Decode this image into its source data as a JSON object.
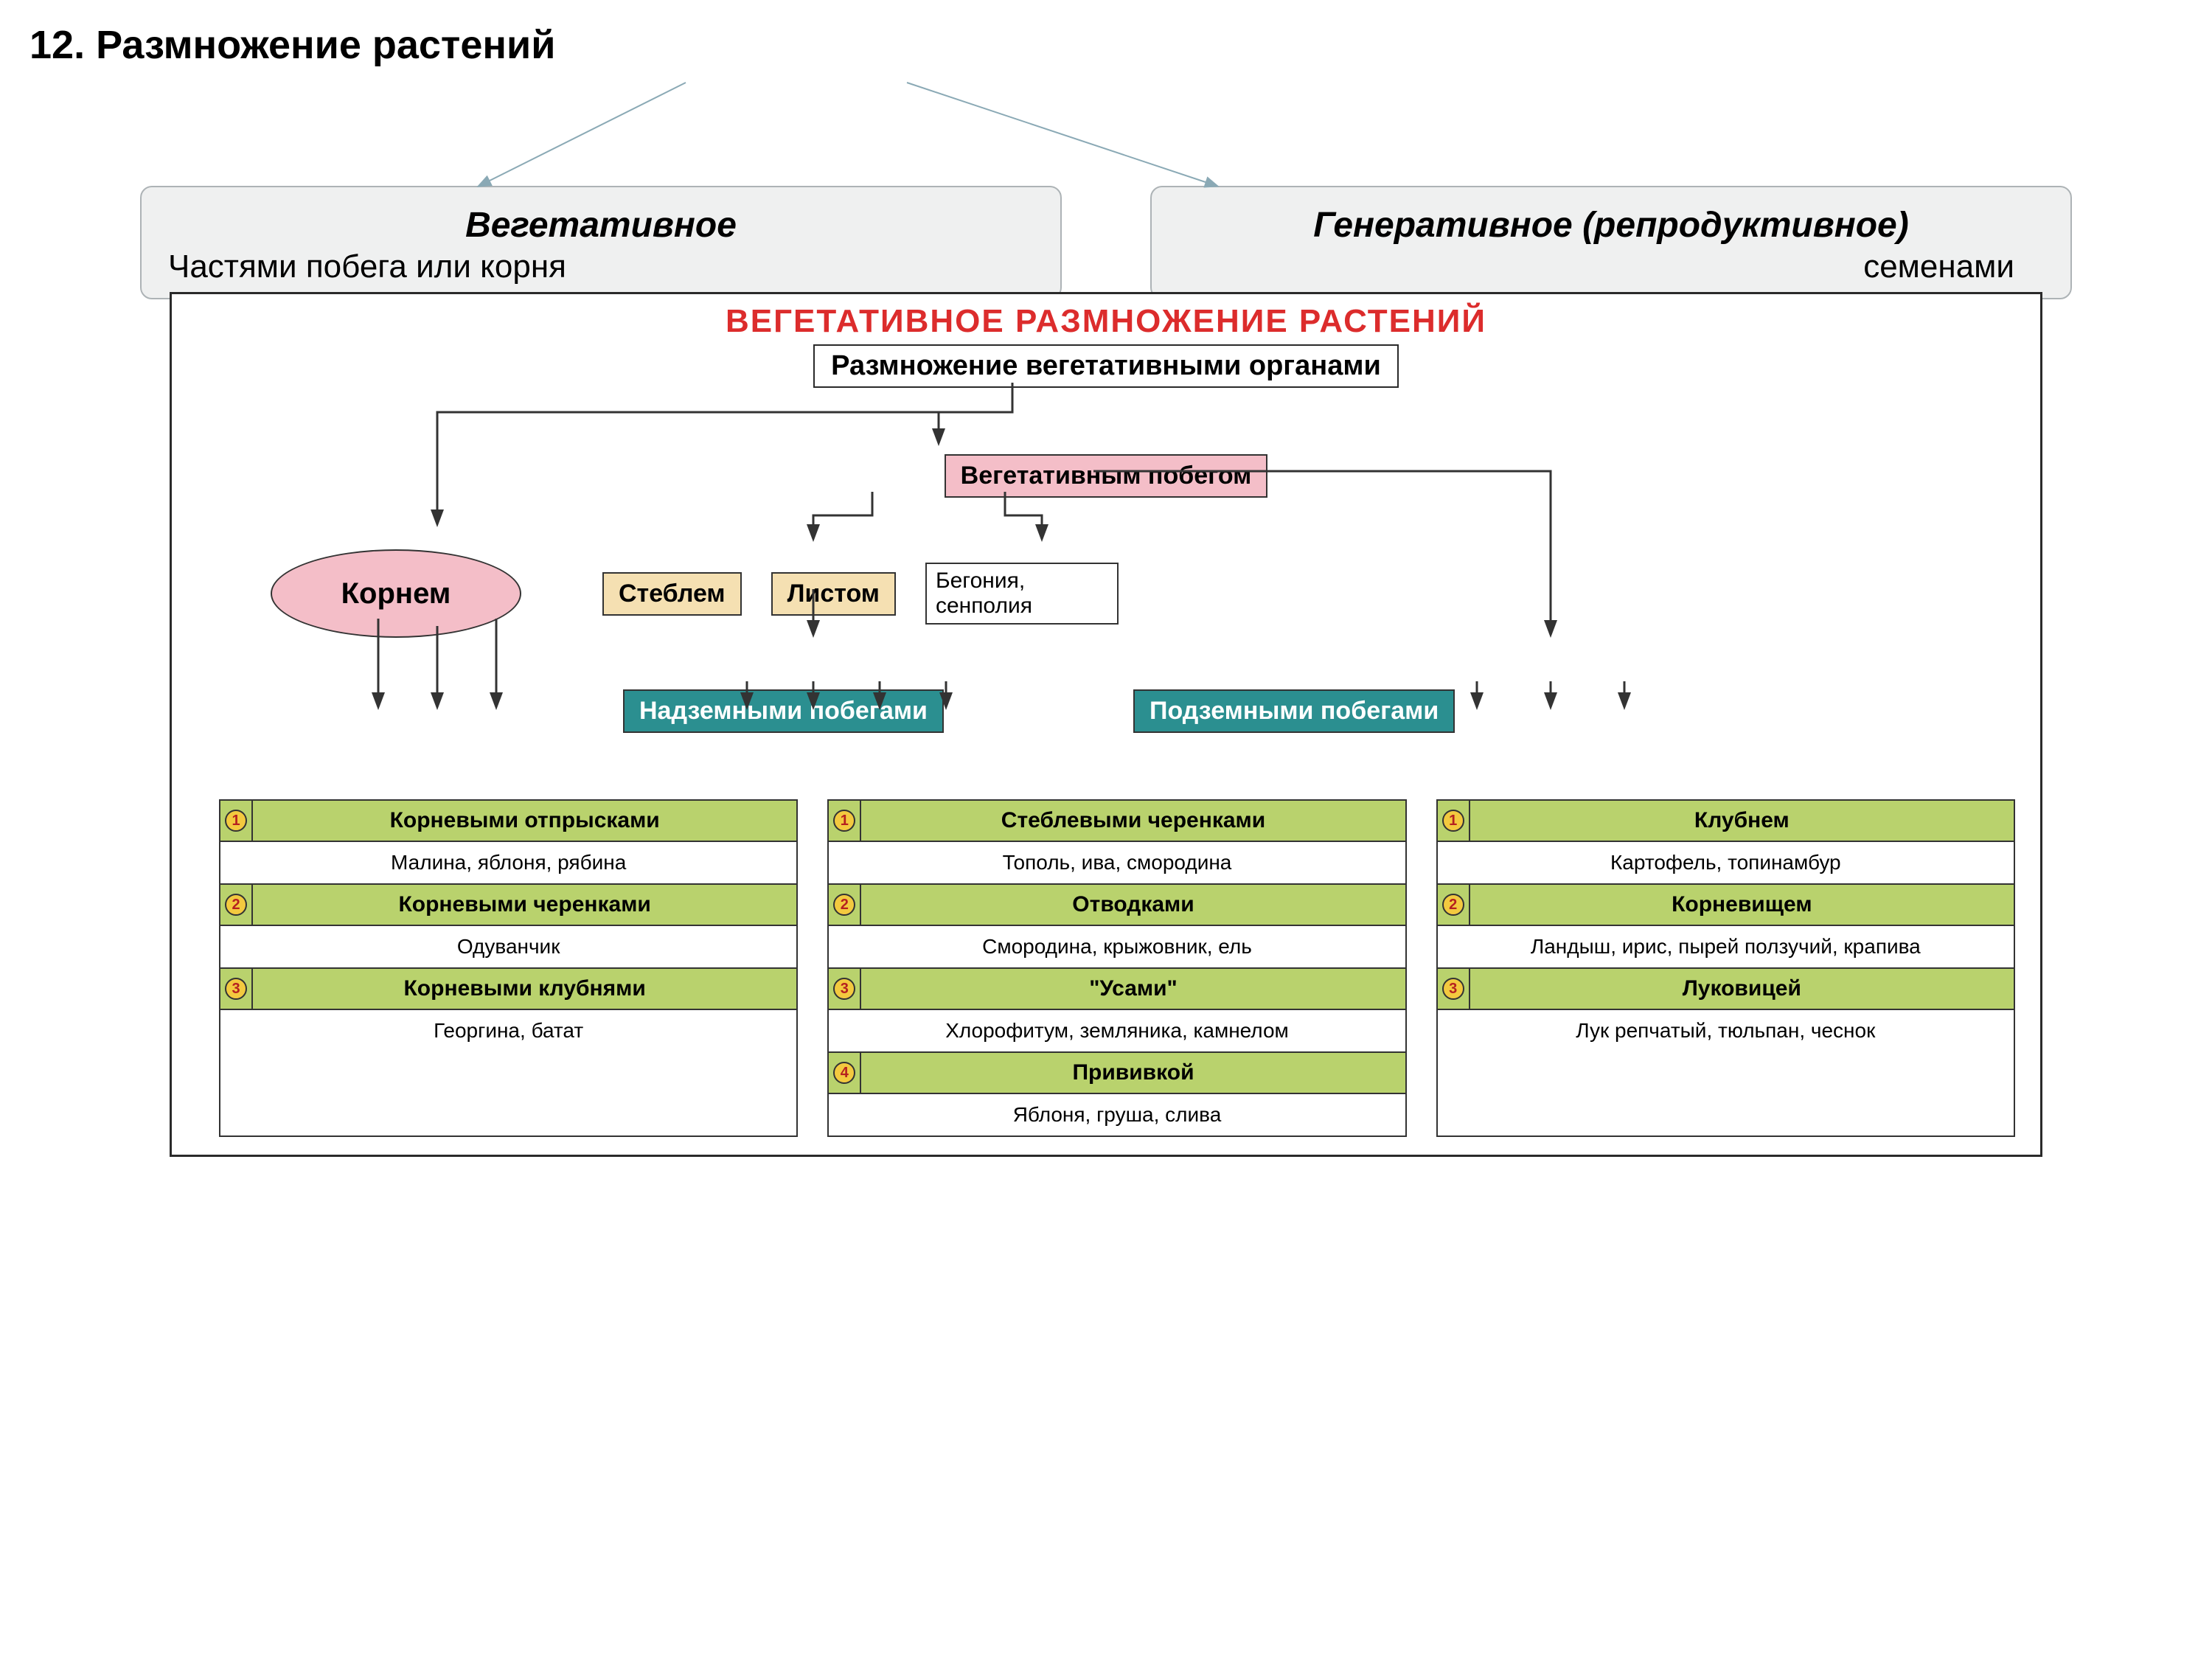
{
  "page_title": "12. Размножение растений",
  "top_boxes": {
    "left": {
      "title": "Вегетативное",
      "sub": "Частями побега или корня"
    },
    "right": {
      "title": "Генеративное (репродуктивное)",
      "sub": "семенами"
    }
  },
  "chart": {
    "title": "ВЕГЕТАТИВНОЕ РАЗМНОЖЕНИЕ РАСТЕНИЙ",
    "subtitle": "Размножение вегетативными органами",
    "nodes": {
      "root": "Корнем",
      "shoot": "Вегетативным побегом",
      "stem": "Стеблем",
      "leaf": "Листом",
      "leaf_note": "Бегония, сенполия",
      "above": "Надземными побегами",
      "below": "Подземными побегами"
    },
    "tables": {
      "root_col": [
        {
          "n": "1",
          "method": "Корневыми отпрысками",
          "ex": "Малина, яблоня, рябина"
        },
        {
          "n": "2",
          "method": "Корневыми черенками",
          "ex": "Одуванчик"
        },
        {
          "n": "3",
          "method": "Корневыми клубнями",
          "ex": "Георгина, батат"
        }
      ],
      "above_col": [
        {
          "n": "1",
          "method": "Стеблевыми черенками",
          "ex": "Тополь, ива, смородина"
        },
        {
          "n": "2",
          "method": "Отводками",
          "ex": "Смородина, крыжовник, ель"
        },
        {
          "n": "3",
          "method": "\"Усами\"",
          "ex": "Хлорофитум, земляника, камнелом"
        },
        {
          "n": "4",
          "method": "Прививкой",
          "ex": "Яблоня, груша, слива"
        }
      ],
      "below_col": [
        {
          "n": "1",
          "method": "Клубнем",
          "ex": "Картофель, топинамбур"
        },
        {
          "n": "2",
          "method": "Корневищем",
          "ex": "Ландыш, ирис, пырей ползучий, крапива"
        },
        {
          "n": "3",
          "method": "Луковицей",
          "ex": "Лук репчатый, тюльпан, чеснок"
        }
      ]
    },
    "colors": {
      "title_color": "#dc2c2c",
      "pink": "#f4bec8",
      "cream": "#f5e0b2",
      "teal": "#2b8f90",
      "green": "#b9d26d",
      "badge": "#f3c93f",
      "border": "#333333",
      "top_box_bg": "#eff0f0",
      "top_box_border": "#adb3b6"
    },
    "fonts": {
      "title": 44,
      "subtitle": 38,
      "node": 34,
      "method": 30,
      "ex": 28
    }
  }
}
